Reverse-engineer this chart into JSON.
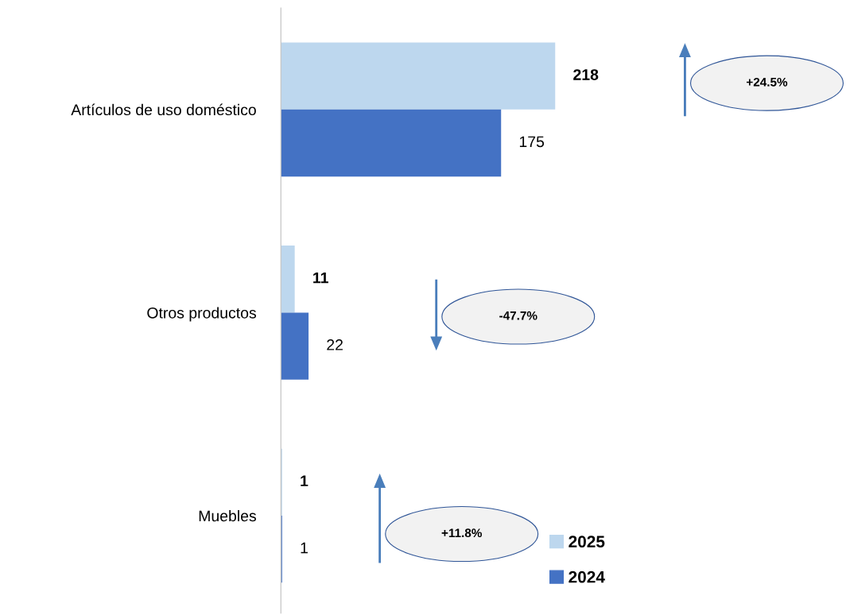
{
  "chart_data": {
    "type": "bar",
    "orientation": "horizontal",
    "categories": [
      "Artículos de uso doméstico",
      "Otros productos",
      "Muebles"
    ],
    "series": [
      {
        "name": "2025",
        "color": "#bdd7ee",
        "values": [
          218,
          11,
          1
        ]
      },
      {
        "name": "2024",
        "color": "#4472c4",
        "values": [
          175,
          22,
          1
        ]
      }
    ],
    "data_labels": true,
    "legend": "bottom right",
    "grid": false,
    "tick_labels": "y",
    "annotations": [
      "+24.5%",
      "-47.7%",
      "+11.8%"
    ]
  }
}
